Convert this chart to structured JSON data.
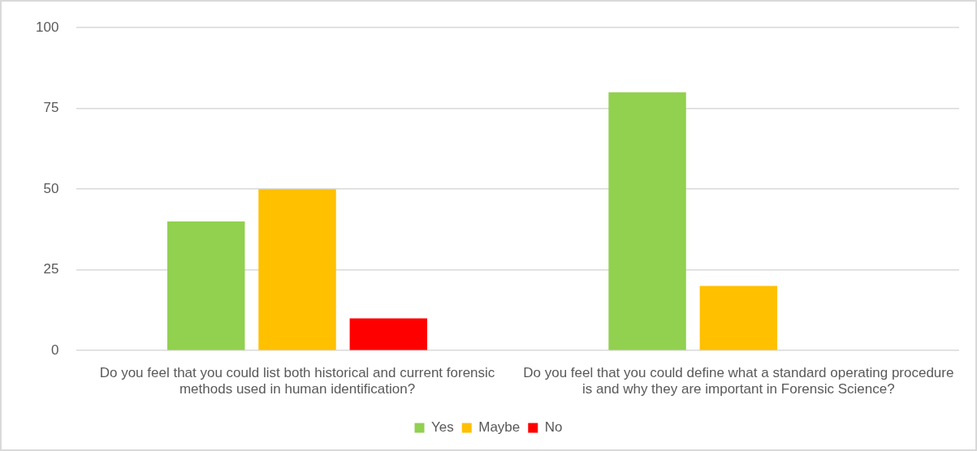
{
  "chart_data": {
    "type": "bar",
    "categories": [
      "Do you feel that you could list both historical and current forensic methods used in human identification?",
      "Do you feel that you could define what a standard operating procedure is and why they are important in Forensic Science?"
    ],
    "series": [
      {
        "name": "Yes",
        "color": "#92d050",
        "values": [
          40,
          80
        ]
      },
      {
        "name": "Maybe",
        "color": "#ffc000",
        "values": [
          50,
          20
        ]
      },
      {
        "name": "No",
        "color": "#ff0000",
        "values": [
          10,
          0
        ]
      }
    ],
    "ylim": [
      0,
      100
    ],
    "yticks": [
      0,
      25,
      50,
      75,
      100
    ],
    "grid": "y",
    "legend": "bottom"
  }
}
